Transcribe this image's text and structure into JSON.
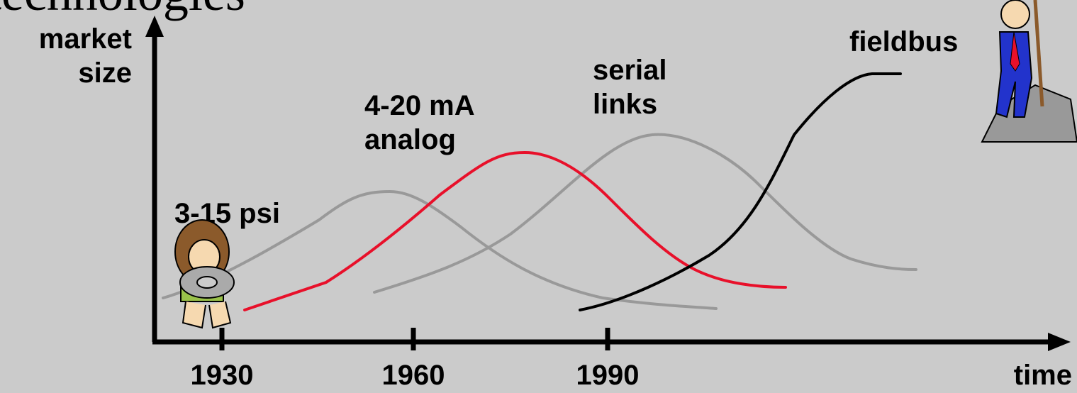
{
  "title": "technologies",
  "y_axis_label": [
    "market",
    "size"
  ],
  "x_axis_label": "time",
  "x_ticks": [
    "1930",
    "1960",
    "1990"
  ],
  "curves": [
    {
      "label": [
        "3-15 psi"
      ]
    },
    {
      "label": [
        "4-20 mA",
        "analog"
      ]
    },
    {
      "label": [
        "serial",
        "links"
      ]
    },
    {
      "label": [
        "fieldbus"
      ]
    }
  ]
}
